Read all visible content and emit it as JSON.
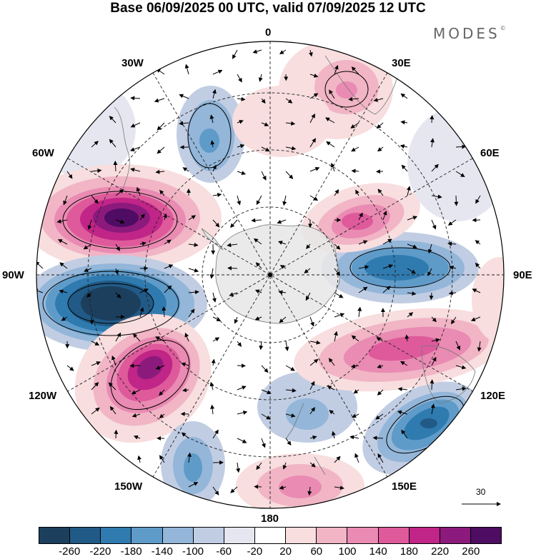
{
  "title": "Base 06/09/2025 00 UTC, valid 07/09/2025 12 UTC",
  "brand": {
    "name": "MODES",
    "mark": "©"
  },
  "longitude_labels": {
    "l0": "0",
    "l30e": "30E",
    "l60e": "60E",
    "l90e": "90E",
    "l120e": "120E",
    "l150e": "150E",
    "l180": "180",
    "l150w": "150W",
    "l120w": "120W",
    "l90w": "90W",
    "l60w": "60W",
    "l30w": "30W"
  },
  "vector_scale": {
    "value": "30"
  },
  "legend": {
    "colors": [
      "#1c3f5e",
      "#215a86",
      "#2f7bb0",
      "#5f9bc9",
      "#93b6d9",
      "#c1cde3",
      "#e5e6f0",
      "#ffffff",
      "#f8dede",
      "#f1b5c6",
      "#e98bb2",
      "#de5a9b",
      "#c02587",
      "#8c1a7d",
      "#4e0c62"
    ],
    "ticks": [
      "-260",
      "-220",
      "-180",
      "-140",
      "-100",
      "-60",
      "-20",
      "20",
      "60",
      "100",
      "140",
      "180",
      "220",
      "260"
    ]
  },
  "map_features": {
    "projection": "south-polar-stereographic",
    "anomaly_centers": [
      {
        "name": "positive-anomaly-60W-80W",
        "lon": -70,
        "value": 260
      },
      {
        "name": "negative-anomaly-90W-100W",
        "lon": -97,
        "value": -260
      },
      {
        "name": "positive-anomaly-120W-130W",
        "lon": -125,
        "value": 260
      },
      {
        "name": "negative-anomaly-150W-160W",
        "lon": -158,
        "value": -140
      },
      {
        "name": "positive-anomaly-170E-180",
        "lon": 175,
        "value": 140
      },
      {
        "name": "negative-anomaly-135E",
        "lon": 135,
        "value": -180
      },
      {
        "name": "positive-anomaly-110E",
        "lon": 110,
        "value": 140
      },
      {
        "name": "negative-anomaly-90E",
        "lon": 88,
        "value": -180
      },
      {
        "name": "positive-anomaly-65E",
        "lon": 62,
        "value": 180
      },
      {
        "name": "positive-anomaly-20E",
        "lon": 20,
        "value": 100
      },
      {
        "name": "negative-anomaly-30W",
        "lon": -30,
        "value": -140
      }
    ]
  }
}
